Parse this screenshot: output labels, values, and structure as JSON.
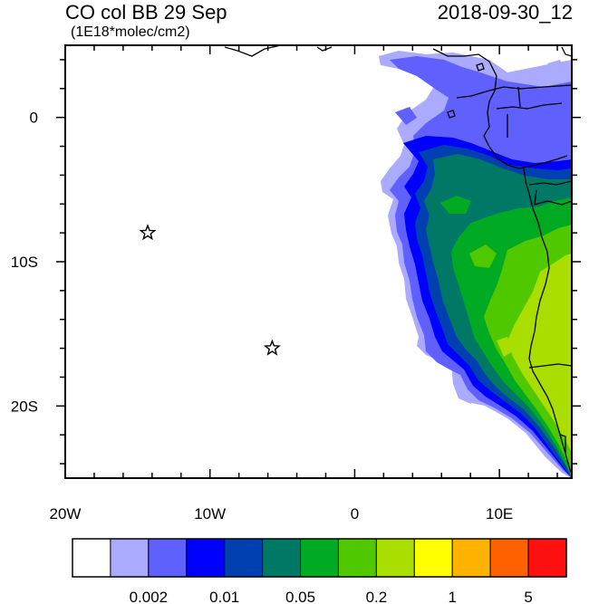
{
  "title": "CO col BB 29 Sep",
  "datetime": "2018-09-30_12",
  "units": "(1E18*molec/cm2)",
  "axes": {
    "x_ticks": [
      {
        "label": "20W",
        "lon": -20
      },
      {
        "label": "10W",
        "lon": -10
      },
      {
        "label": "0",
        "lon": 0
      },
      {
        "label": "10E",
        "lon": 10
      }
    ],
    "y_ticks": [
      {
        "label": "0",
        "lat": 0
      },
      {
        "label": "10S",
        "lat": -10
      },
      {
        "label": "20S",
        "lat": -20
      }
    ],
    "lon_range": [
      -20,
      15
    ],
    "lat_range": [
      -25,
      5
    ]
  },
  "markers": [
    {
      "name": "star-marker-1",
      "lon": -14.3,
      "lat": -8.0
    },
    {
      "name": "star-marker-2",
      "lon": -5.7,
      "lat": -16.0
    }
  ],
  "colorbar": {
    "colors": [
      "#ffffff",
      "#aaaaff",
      "#6060ff",
      "#0000ff",
      "#0040b0",
      "#007866",
      "#00aa22",
      "#50c800",
      "#aadd00",
      "#ffff00",
      "#ffb300",
      "#ff6000",
      "#ff1010"
    ],
    "labels": [
      {
        "text": "0.002",
        "boundary": 2
      },
      {
        "text": "0.01",
        "boundary": 4
      },
      {
        "text": "0.05",
        "boundary": 6
      },
      {
        "text": "0.2",
        "boundary": 8
      },
      {
        "text": "1",
        "boundary": 10
      },
      {
        "text": "5",
        "boundary": 12
      }
    ]
  }
}
